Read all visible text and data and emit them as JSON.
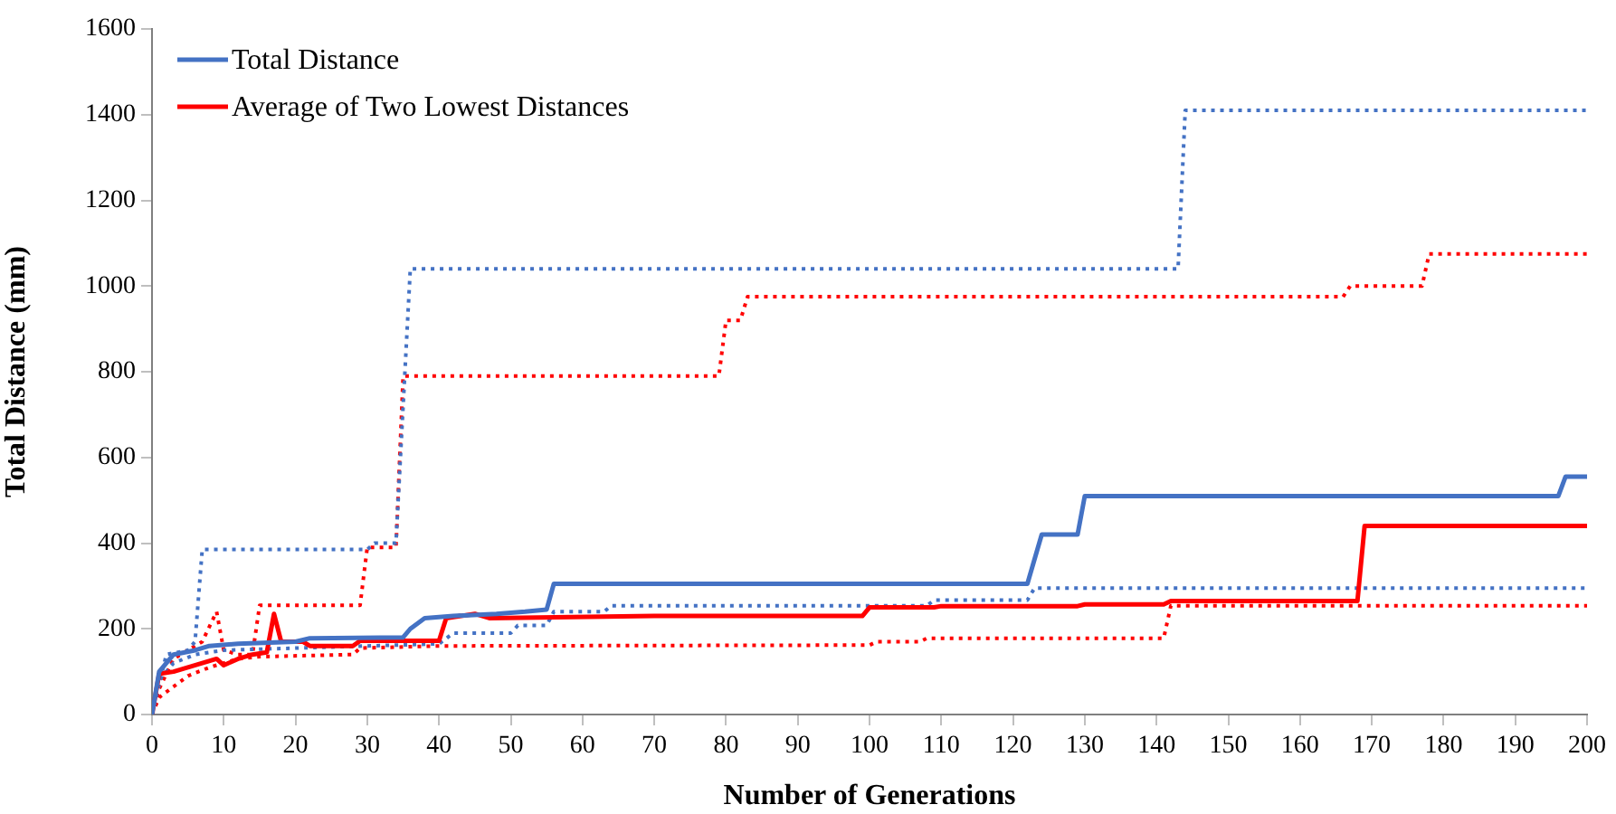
{
  "chart_data": {
    "type": "line",
    "xlabel": "Number of Generations",
    "ylabel": "Total Distance (mm)",
    "xlim": [
      0,
      200
    ],
    "xticks": [
      0,
      10,
      20,
      30,
      40,
      50,
      60,
      70,
      80,
      90,
      100,
      110,
      120,
      130,
      140,
      150,
      160,
      170,
      180,
      190,
      200
    ],
    "ylim": [
      0,
      1600
    ],
    "yticks": [
      0,
      200,
      400,
      600,
      800,
      1000,
      1200,
      1400,
      1600
    ],
    "grid": false,
    "legend": "top left",
    "marker": "none",
    "series": [
      {
        "name": "Total Distance",
        "color": "#4472c4",
        "line_style": "solid",
        "x": [
          0,
          1,
          3,
          6,
          8,
          12,
          20,
          22,
          35,
          36,
          38,
          42,
          48,
          52,
          55,
          56,
          122,
          124,
          129,
          130,
          196,
          197,
          200
        ],
        "values": [
          0,
          100,
          140,
          150,
          160,
          165,
          170,
          178,
          180,
          200,
          225,
          230,
          235,
          240,
          245,
          305,
          305,
          420,
          420,
          510,
          510,
          555,
          555
        ]
      },
      {
        "name": "Average of Two Lowest Distances",
        "color": "#ff0000",
        "line_style": "solid",
        "x": [
          0,
          1,
          3,
          5,
          7,
          9,
          10,
          12,
          14,
          16,
          17,
          18,
          21,
          22,
          28,
          29,
          40,
          41,
          45,
          47,
          70,
          99,
          100,
          109,
          110,
          129,
          130,
          141,
          142,
          168,
          169,
          200
        ],
        "values": [
          0,
          95,
          100,
          110,
          120,
          130,
          115,
          130,
          140,
          145,
          235,
          170,
          170,
          160,
          160,
          172,
          172,
          225,
          235,
          225,
          230,
          230,
          250,
          250,
          253,
          253,
          257,
          257,
          265,
          265,
          440,
          440
        ]
      },
      {
        "color": "#4472c4",
        "line_style": "dotted",
        "x": [
          0,
          2,
          5,
          6,
          7,
          30,
          31,
          34,
          36,
          143,
          144,
          200
        ],
        "values": [
          0,
          140,
          150,
          170,
          385,
          385,
          400,
          400,
          1040,
          1040,
          1410,
          1410
        ]
      },
      {
        "color": "#4472c4",
        "line_style": "dotted",
        "x": [
          0,
          1,
          3,
          6,
          10,
          20,
          30,
          40,
          42,
          50,
          51,
          55,
          56,
          63,
          64,
          108,
          109,
          122,
          123,
          200
        ],
        "values": [
          0,
          80,
          120,
          140,
          150,
          155,
          160,
          165,
          190,
          190,
          208,
          208,
          240,
          240,
          254,
          254,
          267,
          267,
          295,
          295
        ]
      },
      {
        "color": "#ff0000",
        "line_style": "dotted",
        "x": [
          0,
          1,
          3,
          5,
          7,
          9,
          10,
          12,
          14,
          15,
          29,
          30,
          34,
          35,
          79,
          80,
          82,
          83,
          166,
          167,
          177,
          178,
          200
        ],
        "values": [
          0,
          60,
          130,
          150,
          170,
          240,
          150,
          140,
          140,
          255,
          255,
          390,
          390,
          790,
          790,
          920,
          920,
          975,
          975,
          1000,
          1000,
          1075,
          1075
        ]
      },
      {
        "color": "#ff0000",
        "line_style": "dotted",
        "x": [
          0,
          1,
          5,
          8,
          12,
          15,
          28,
          29,
          40,
          100,
          101,
          107,
          108,
          141,
          142,
          200
        ],
        "values": [
          0,
          40,
          90,
          110,
          130,
          135,
          140,
          155,
          160,
          162,
          170,
          170,
          178,
          178,
          254,
          254
        ]
      }
    ]
  }
}
